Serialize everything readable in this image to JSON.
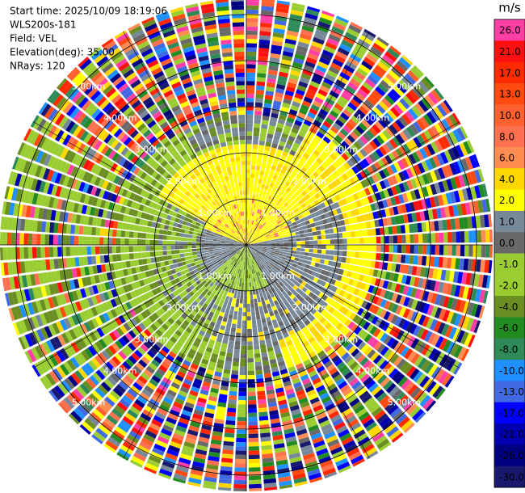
{
  "chart_data": {
    "type": "radar-ppi",
    "info": [
      "Start time: 2025/10/09 18:19:06",
      "WLS200s-181",
      "Field: VEL",
      "Elevation(deg): 35.00",
      "NRays: 120"
    ],
    "range_rings": [
      {
        "value": 1,
        "label": "1.00km"
      },
      {
        "value": 2,
        "label": "2.00km"
      },
      {
        "value": 3,
        "label": "3.00km"
      },
      {
        "value": 4,
        "label": "4.00km"
      },
      {
        "value": 5,
        "label": "5.00km"
      }
    ],
    "colorbar": {
      "unit": "m/s",
      "ticks": [
        {
          "value": 26,
          "label": "26.0",
          "color": "#ff3fa6"
        },
        {
          "value": 21,
          "label": "21.0",
          "color": "#ff1010"
        },
        {
          "value": 17,
          "label": "17.0",
          "color": "#ff2a00"
        },
        {
          "value": 13,
          "label": "13.0",
          "color": "#ff4a10"
        },
        {
          "value": 10,
          "label": "10.0",
          "color": "#ff6030"
        },
        {
          "value": 8,
          "label": "8.0",
          "color": "#ff7050"
        },
        {
          "value": 6,
          "label": "6.0",
          "color": "#ff8c50"
        },
        {
          "value": 4,
          "label": "4.0",
          "color": "#ffd700"
        },
        {
          "value": 2,
          "label": "2.0",
          "color": "#ffff00"
        },
        {
          "value": 1,
          "label": "1.0",
          "color": "#778899"
        },
        {
          "value": 0,
          "label": "0.0",
          "color": "#696969"
        },
        {
          "value": -1,
          "label": "-1.0",
          "color": "#9acd32"
        },
        {
          "value": -2,
          "label": "-2.0",
          "color": "#9acd32"
        },
        {
          "value": -4,
          "label": "-4.0",
          "color": "#6b8e23"
        },
        {
          "value": -6,
          "label": "-6.0",
          "color": "#228b22"
        },
        {
          "value": -8,
          "label": "-8.0",
          "color": "#2e8b57"
        },
        {
          "value": -10,
          "label": "-10.0",
          "color": "#1e90ff"
        },
        {
          "value": -13,
          "label": "-13.0",
          "color": "#4169e1"
        },
        {
          "value": -17,
          "label": "-17.0",
          "color": "#0000ff"
        },
        {
          "value": -21,
          "label": "-21.0",
          "color": "#0000b0"
        },
        {
          "value": -26,
          "label": "-26.0",
          "color": "#000080"
        },
        {
          "value": -30,
          "label": "-30.0",
          "color": "#191970"
        }
      ]
    }
  }
}
